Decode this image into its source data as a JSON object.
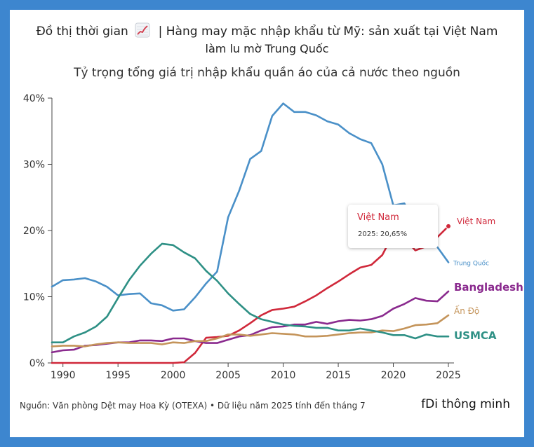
{
  "header": {
    "title": "Đồ thị thời gian",
    "icon": "chart-increasing-icon",
    "headline_part1": "| Hàng may mặc nhập khẩu từ Mỹ: sản xuất tại Việt Nam",
    "headline_part2": "làm lu mờ Trung Quốc"
  },
  "footer": {
    "source": "Nguồn: Văn phòng Dệt may Hoa Kỳ (OTEXA) • Dữ liệu năm 2025 tính đến tháng 7",
    "brand": "fDi thông minh"
  },
  "tooltip": {
    "name": "Việt Nam",
    "value": "2025: 20,65%"
  },
  "chart_data": {
    "type": "line",
    "title": "Tỷ trọng tổng giá trị nhập khẩu quần áo của cả nước theo nguồn",
    "xlabel": "",
    "ylabel": "",
    "xlim": [
      1989,
      2025
    ],
    "ylim": [
      0,
      40
    ],
    "x_ticks": [
      "1990",
      "1995",
      "2000",
      "2005",
      "2010",
      "2015",
      "2020",
      "2025"
    ],
    "y_ticks": [
      "0%",
      "10%",
      "20%",
      "30%",
      "40%"
    ],
    "grid": false,
    "x": [
      1989,
      1990,
      1991,
      1992,
      1993,
      1994,
      1995,
      1996,
      1997,
      1998,
      1999,
      2000,
      2001,
      2002,
      2003,
      2004,
      2005,
      2006,
      2007,
      2008,
      2009,
      2010,
      2011,
      2012,
      2013,
      2014,
      2015,
      2016,
      2017,
      2018,
      2019,
      2020,
      2021,
      2022,
      2023,
      2024,
      2025
    ],
    "series": [
      {
        "name": "Trung Quốc",
        "color": "#4a90c8",
        "label_style": "small",
        "values": [
          11.5,
          12.5,
          12.6,
          12.8,
          12.3,
          11.5,
          10.2,
          10.4,
          10.5,
          9.0,
          8.7,
          7.9,
          8.1,
          9.9,
          12.0,
          13.8,
          22.0,
          26.0,
          30.8,
          32.0,
          37.3,
          39.2,
          37.9,
          37.9,
          37.4,
          36.5,
          36.0,
          34.7,
          33.8,
          33.2,
          30.0,
          23.8,
          24.1,
          21.0,
          18.3,
          17.5,
          15.2
        ]
      },
      {
        "name": "Việt Nam",
        "color": "#d0283a",
        "label_style": "medium",
        "values": [
          0,
          0,
          0,
          0,
          0,
          0,
          0,
          0,
          0,
          0,
          0,
          0,
          0.1,
          1.5,
          3.8,
          3.9,
          4.1,
          4.9,
          6.0,
          7.2,
          8.0,
          8.2,
          8.5,
          9.3,
          10.2,
          11.3,
          12.3,
          13.4,
          14.4,
          14.8,
          16.3,
          19.5,
          18.8,
          17.0,
          17.6,
          19.0,
          20.65
        ]
      },
      {
        "name": "Bangladesh",
        "color": "#8a2a8e",
        "label_style": "bold",
        "values": [
          1.6,
          1.9,
          2.0,
          2.6,
          2.7,
          2.9,
          3.1,
          3.1,
          3.4,
          3.4,
          3.3,
          3.7,
          3.7,
          3.3,
          3.0,
          3.0,
          3.5,
          4.0,
          4.2,
          4.9,
          5.4,
          5.5,
          5.8,
          5.8,
          6.2,
          5.9,
          6.3,
          6.5,
          6.4,
          6.6,
          7.1,
          8.2,
          8.9,
          9.8,
          9.4,
          9.3,
          10.8
        ]
      },
      {
        "name": "Ấn Độ",
        "color": "#c4945a",
        "label_style": "medium",
        "values": [
          2.5,
          2.6,
          2.6,
          2.5,
          2.8,
          3.0,
          3.1,
          3.0,
          3.0,
          3.0,
          2.8,
          3.1,
          3.0,
          3.3,
          3.3,
          3.7,
          4.3,
          4.3,
          4.1,
          4.3,
          4.5,
          4.4,
          4.3,
          4.0,
          4.0,
          4.1,
          4.3,
          4.5,
          4.6,
          4.6,
          4.9,
          4.8,
          5.2,
          5.7,
          5.8,
          6.0,
          7.2
        ]
      },
      {
        "name": "USMCA",
        "color": "#2e9085",
        "label_style": "bold",
        "values": [
          3.1,
          3.1,
          4.0,
          4.6,
          5.5,
          7.0,
          9.8,
          12.5,
          14.7,
          16.5,
          18.0,
          17.8,
          16.7,
          15.8,
          13.9,
          12.4,
          10.5,
          8.9,
          7.4,
          6.6,
          6.2,
          5.8,
          5.6,
          5.5,
          5.3,
          5.3,
          4.9,
          4.9,
          5.2,
          4.9,
          4.6,
          4.2,
          4.2,
          3.7,
          4.3,
          4.0,
          4.0
        ]
      }
    ],
    "highlight": {
      "series": "Việt Nam",
      "x": 2025,
      "value": 20.65
    }
  }
}
